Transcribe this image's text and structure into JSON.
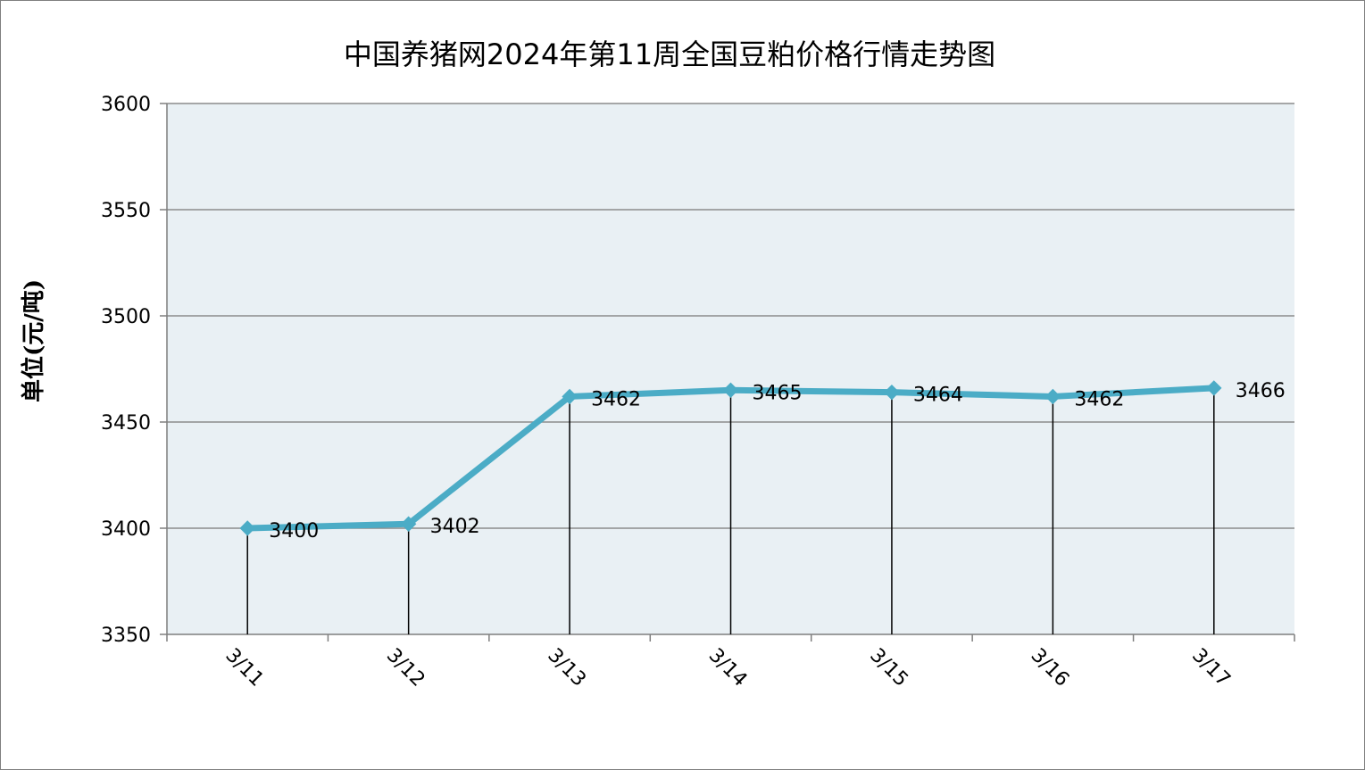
{
  "chart_data": {
    "type": "line",
    "title": "中国养猪网2024年第11周全国豆粕价格行情走势图",
    "xlabel": "",
    "ylabel": "单位(元/吨)",
    "categories": [
      "3/11",
      "3/12",
      "3/13",
      "3/14",
      "3/15",
      "3/16",
      "3/17"
    ],
    "series": [
      {
        "values": [
          3400,
          3402,
          3462,
          3465,
          3464,
          3462,
          3466
        ]
      }
    ],
    "ylim": [
      3350,
      3600
    ],
    "yticks": [
      3350,
      3400,
      3450,
      3500,
      3550,
      3600
    ],
    "grid": true,
    "legend": "none",
    "colors": {
      "line": "#4BACC6",
      "plot_background": "#E9F0F4",
      "gridline": "#8C8C8C",
      "drop_line": "#000000"
    }
  }
}
